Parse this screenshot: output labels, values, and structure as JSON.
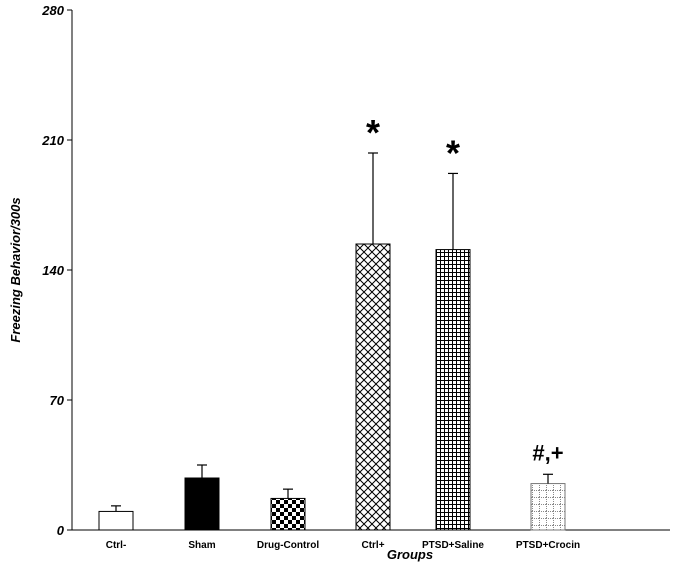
{
  "chart_data": {
    "type": "bar",
    "title": "",
    "xlabel": "Groups",
    "ylabel": "Freezing Behavior/300s",
    "ylim": [
      0,
      280
    ],
    "yticks": [
      0,
      70,
      140,
      210,
      280
    ],
    "categories": [
      "Ctrl-",
      "Sham",
      "Drug-Control",
      "Ctrl+",
      "PTSD+Saline",
      "PTSD+Crocin"
    ],
    "values": [
      10,
      28,
      17,
      154,
      151,
      25
    ],
    "errors": [
      3,
      7,
      5,
      49,
      41,
      5
    ],
    "patterns": [
      "white",
      "solid-black",
      "checker",
      "diagonal-crosshatch",
      "dense-grid",
      "sparse-grid"
    ],
    "annotations": [
      "",
      "",
      "",
      "*",
      "*",
      "#,+"
    ],
    "grid": false,
    "legend": "none"
  }
}
